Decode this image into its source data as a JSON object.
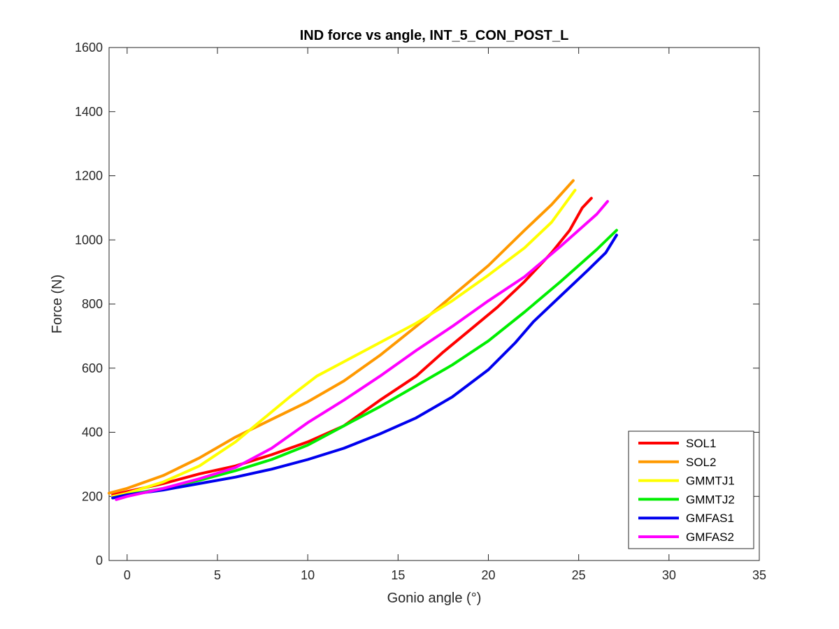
{
  "chart_data": {
    "type": "line",
    "title": "IND force vs angle, INT_5_CON_POST_L",
    "xlabel": "Gonio angle (°)",
    "ylabel": "Force (N)",
    "xlim": [
      -1,
      35
    ],
    "ylim": [
      0,
      1600
    ],
    "xticks": [
      0,
      5,
      10,
      15,
      20,
      25,
      30,
      35
    ],
    "yticks": [
      0,
      200,
      400,
      600,
      800,
      1000,
      1200,
      1400,
      1600
    ],
    "grid": false,
    "legend_position": "bottom-right",
    "series": [
      {
        "name": "SOL1",
        "color": "#ff0000",
        "x": [
          -0.8,
          0,
          2,
          4,
          6,
          8,
          10,
          12,
          14,
          16,
          17.5,
          19,
          20.5,
          22,
          23.5,
          24.5,
          25.2,
          25.7
        ],
        "y": [
          205,
          215,
          240,
          270,
          295,
          330,
          370,
          420,
          500,
          575,
          650,
          720,
          790,
          870,
          960,
          1030,
          1100,
          1130
        ]
      },
      {
        "name": "SOL2",
        "color": "#ff9900",
        "x": [
          -1,
          0,
          2,
          4,
          6,
          8,
          10,
          12,
          14,
          16,
          18,
          20,
          22,
          23.5,
          24.7
        ],
        "y": [
          210,
          225,
          265,
          320,
          385,
          440,
          495,
          560,
          640,
          730,
          825,
          920,
          1030,
          1110,
          1185
        ]
      },
      {
        "name": "GMMTJ1",
        "color": "#ffff00",
        "x": [
          -0.8,
          0,
          2,
          4,
          6,
          7.5,
          9,
          10.5,
          12,
          14,
          16,
          18,
          20,
          22,
          23.5,
          24.8
        ],
        "y": [
          200,
          210,
          245,
          295,
          370,
          440,
          510,
          575,
          620,
          680,
          740,
          810,
          890,
          975,
          1055,
          1155
        ]
      },
      {
        "name": "GMMTJ2",
        "color": "#00ee00",
        "x": [
          -0.8,
          0,
          2,
          4,
          6,
          8,
          10,
          12,
          14,
          16,
          18,
          20,
          22,
          24,
          26,
          27.1
        ],
        "y": [
          195,
          205,
          225,
          250,
          280,
          315,
          360,
          420,
          480,
          545,
          610,
          685,
          775,
          870,
          970,
          1030
        ]
      },
      {
        "name": "GMFAS1",
        "color": "#0000ee",
        "x": [
          -0.8,
          0,
          2,
          4,
          6,
          8,
          10,
          12,
          14,
          16,
          18,
          20,
          21.5,
          22.5,
          24,
          25.5,
          26.5,
          27.1
        ],
        "y": [
          195,
          205,
          220,
          240,
          260,
          285,
          315,
          350,
          395,
          445,
          510,
          595,
          680,
          745,
          825,
          905,
          960,
          1015
        ]
      },
      {
        "name": "GMFAS2",
        "color": "#ff00ff",
        "x": [
          -0.6,
          0,
          2,
          4,
          6,
          8,
          10,
          12,
          14,
          16,
          18,
          20,
          22,
          24,
          26,
          26.6
        ],
        "y": [
          190,
          200,
          225,
          255,
          290,
          350,
          430,
          500,
          575,
          655,
          730,
          810,
          885,
          980,
          1080,
          1120
        ]
      }
    ]
  }
}
